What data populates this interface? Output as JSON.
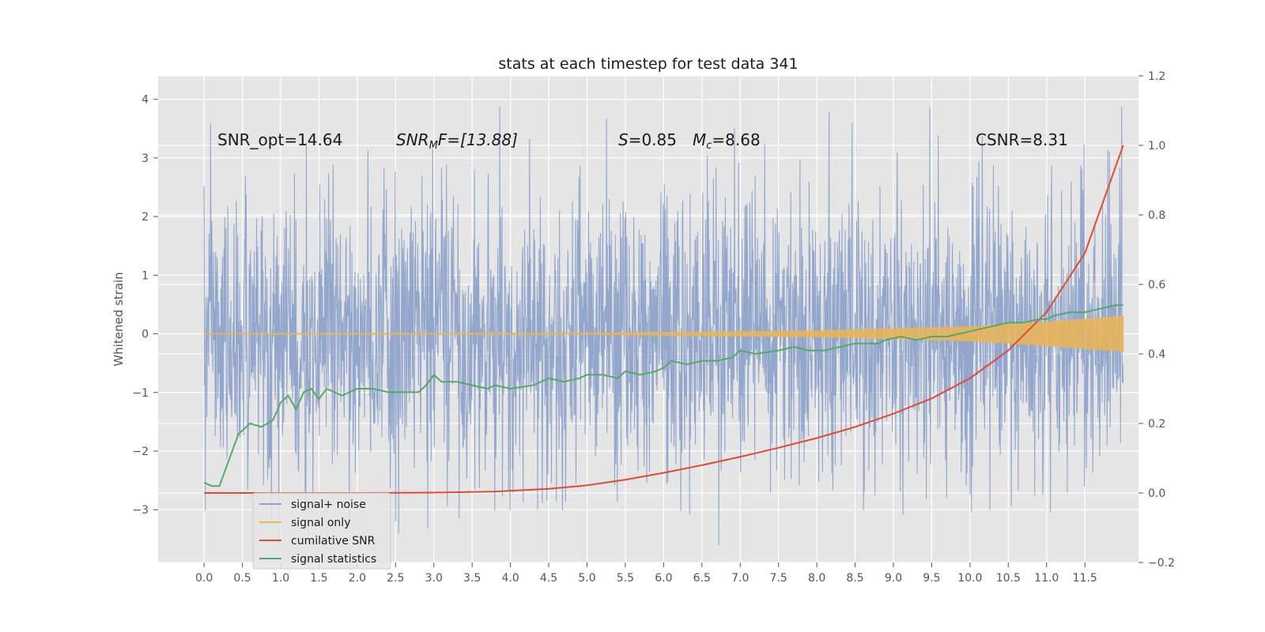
{
  "chart_data": {
    "type": "line",
    "title": "stats at each timestep for test data 341",
    "ylabel": "Whitened strain",
    "xlim": [
      -0.6,
      12.2
    ],
    "ylim": [
      -3.9,
      4.4
    ],
    "y2lim": [
      -0.2,
      1.2
    ],
    "grid": true,
    "legend_placement": "lower-left",
    "x_ticks": [
      "0.0",
      "0.5",
      "1.0",
      "1.5",
      "2.0",
      "2.5",
      "3.0",
      "3.5",
      "4.0",
      "4.5",
      "5.0",
      "5.5",
      "6.0",
      "6.5",
      "7.0",
      "7.5",
      "8.0",
      "8.5",
      "9.0",
      "9.5",
      "10.0",
      "10.5",
      "11.0",
      "11.5"
    ],
    "y_ticks": [
      "4",
      "3",
      "2",
      "1",
      "0",
      "−1",
      "−2",
      "−3"
    ],
    "y2_ticks": [
      "1.2",
      "1.0",
      "0.8",
      "0.6",
      "0.4",
      "0.2",
      "0.0",
      "−0.2"
    ],
    "annotations": {
      "snr_opt": "SNR_opt=14.64",
      "snr_mf_main": "SNR",
      "snr_mf_sub": "M",
      "snr_mf_rest": "F=[13.88]",
      "s_var": "S",
      "s_val": "=0.85",
      "mc_var": "M",
      "mc_sub": "c",
      "mc_val": "=8.68",
      "csnr": "CSNR=8.31"
    },
    "series": [
      {
        "name": "signal+ noise",
        "color": "#8ea3cb",
        "x_range": [
          0.0,
          12.0
        ],
        "y_range": [
          -3.6,
          4.1
        ],
        "typical_amplitude": 1.2
      },
      {
        "name": "signal only",
        "color": "#e8b55a",
        "x": [
          0.0,
          5.0,
          8.0,
          10.0,
          11.0,
          12.0
        ],
        "amplitude": [
          0.005,
          0.01,
          0.05,
          0.12,
          0.2,
          0.3
        ]
      },
      {
        "name": "cumilative SNR",
        "color": "#e24a33",
        "x": [
          0.0,
          1.0,
          2.0,
          3.0,
          3.8,
          4.5,
          5.0,
          5.5,
          6.0,
          6.5,
          7.0,
          7.5,
          8.0,
          8.5,
          9.0,
          9.5,
          10.0,
          10.5,
          11.0,
          11.5,
          12.0
        ],
        "y": [
          0.0,
          0.0,
          0.0,
          0.001,
          0.004,
          0.012,
          0.022,
          0.038,
          0.058,
          0.08,
          0.104,
          0.13,
          0.158,
          0.19,
          0.228,
          0.272,
          0.33,
          0.41,
          0.52,
          0.69,
          1.0
        ]
      },
      {
        "name": "signal statistics",
        "color": "#55a868",
        "x": [
          0.0,
          0.1,
          0.2,
          0.3,
          0.45,
          0.6,
          0.75,
          0.9,
          1.0,
          1.1,
          1.2,
          1.3,
          1.4,
          1.5,
          1.6,
          1.7,
          1.8,
          2.0,
          2.2,
          2.4,
          2.6,
          2.8,
          2.9,
          3.0,
          3.1,
          3.3,
          3.5,
          3.7,
          3.8,
          4.0,
          4.3,
          4.5,
          4.7,
          4.9,
          5.0,
          5.2,
          5.4,
          5.5,
          5.7,
          5.9,
          6.0,
          6.1,
          6.3,
          6.5,
          6.7,
          6.9,
          7.0,
          7.2,
          7.5,
          7.7,
          7.9,
          8.1,
          8.3,
          8.5,
          8.8,
          8.9,
          9.1,
          9.3,
          9.5,
          9.7,
          9.9,
          10.1,
          10.3,
          10.5,
          10.7,
          10.9,
          11.0,
          11.1,
          11.3,
          11.5,
          11.7,
          11.9,
          12.0
        ],
        "y": [
          0.03,
          0.02,
          0.02,
          0.08,
          0.17,
          0.2,
          0.19,
          0.21,
          0.26,
          0.28,
          0.24,
          0.29,
          0.3,
          0.27,
          0.3,
          0.29,
          0.28,
          0.3,
          0.3,
          0.29,
          0.29,
          0.29,
          0.31,
          0.34,
          0.32,
          0.32,
          0.31,
          0.3,
          0.31,
          0.3,
          0.31,
          0.33,
          0.32,
          0.33,
          0.34,
          0.34,
          0.33,
          0.35,
          0.34,
          0.35,
          0.36,
          0.38,
          0.37,
          0.38,
          0.38,
          0.39,
          0.41,
          0.4,
          0.41,
          0.42,
          0.41,
          0.41,
          0.42,
          0.43,
          0.43,
          0.44,
          0.45,
          0.44,
          0.45,
          0.45,
          0.46,
          0.47,
          0.48,
          0.49,
          0.49,
          0.5,
          0.5,
          0.51,
          0.52,
          0.52,
          0.53,
          0.54,
          0.54
        ]
      }
    ]
  }
}
